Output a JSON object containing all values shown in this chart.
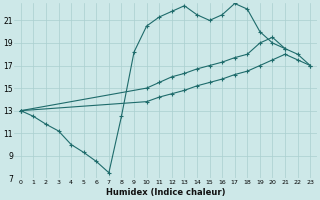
{
  "xlabel": "Humidex (Indice chaleur)",
  "bg_color": "#cde8e8",
  "grid_color": "#aacfcf",
  "line_color": "#1e6b6b",
  "ylim": [
    7,
    22.5
  ],
  "xlim": [
    -0.5,
    23.5
  ],
  "yticks": [
    7,
    9,
    11,
    13,
    15,
    17,
    19,
    21
  ],
  "xticks": [
    0,
    1,
    2,
    3,
    4,
    5,
    6,
    7,
    8,
    9,
    10,
    11,
    12,
    13,
    14,
    15,
    16,
    17,
    18,
    19,
    20,
    21,
    22,
    23
  ],
  "c1x": [
    0,
    1,
    2,
    3,
    4,
    5,
    6,
    7,
    8,
    9,
    10,
    11,
    12,
    13,
    14,
    15,
    16,
    17,
    18,
    19,
    20,
    21
  ],
  "c1y": [
    13,
    12.5,
    11.8,
    11.2,
    10.0,
    9.3,
    8.5,
    7.5,
    12.5,
    18.2,
    20.5,
    21.3,
    21.8,
    22.3,
    21.5,
    21.0,
    21.5,
    22.5,
    22.0,
    20.0,
    19.0,
    18.5
  ],
  "c2x": [
    0,
    10,
    11,
    12,
    13,
    14,
    15,
    16,
    17,
    18,
    19,
    20,
    21,
    22,
    23
  ],
  "c2y": [
    13,
    15.0,
    15.5,
    16.0,
    16.3,
    16.7,
    17.0,
    17.3,
    17.7,
    18.0,
    19.0,
    19.5,
    18.5,
    18.0,
    17.0
  ],
  "c3x": [
    0,
    10,
    11,
    12,
    13,
    14,
    15,
    16,
    17,
    18,
    19,
    20,
    21,
    22,
    23
  ],
  "c3y": [
    13,
    13.8,
    14.2,
    14.5,
    14.8,
    15.2,
    15.5,
    15.8,
    16.2,
    16.5,
    17.0,
    17.5,
    18.0,
    17.5,
    17.0
  ]
}
